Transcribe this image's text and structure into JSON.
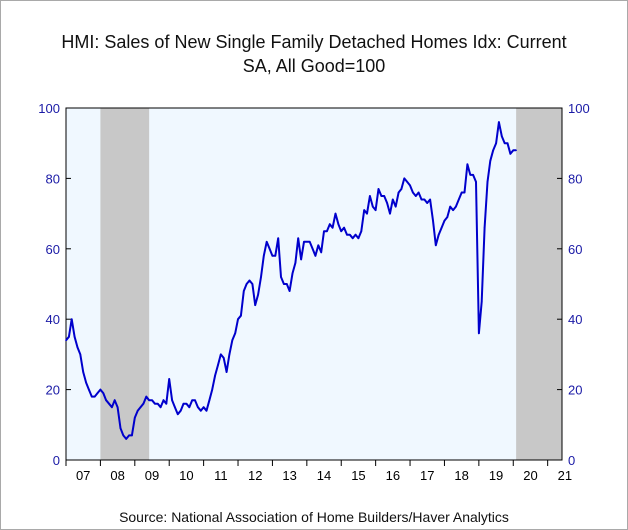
{
  "title_lines": [
    "HMI: Sales of New Single Family Detached Homes Idx: Current",
    "SA, All Good=100"
  ],
  "source": "Source:  National Association of Home Builders/Haver Analytics",
  "colors": {
    "line": "#0000cc",
    "plot_bg": "#f0f8ff",
    "recession": "#c8c8c8",
    "tick_label": "#1a1aa6"
  },
  "chart_data": {
    "type": "line",
    "title": "HMI: Sales of New Single Family Detached Homes Idx: Current SA, All Good=100",
    "xlabel": "",
    "ylabel": "",
    "ylim": [
      0,
      100
    ],
    "xlim": [
      "2007-01",
      "2021-06"
    ],
    "y_ticks": [
      "0",
      "20",
      "40",
      "60",
      "80",
      "100"
    ],
    "x_ticks": [
      "07",
      "08",
      "09",
      "10",
      "11",
      "12",
      "13",
      "14",
      "15",
      "16",
      "17",
      "18",
      "19",
      "20",
      "21"
    ],
    "recession_shading": [
      {
        "start": "2008-01",
        "end": "2009-06"
      },
      {
        "start": "2020-02",
        "end": "2021-06"
      }
    ],
    "grid": false,
    "legend": "none",
    "series": [
      {
        "values": [
          [
            "2007-01",
            34
          ],
          [
            "2007-02",
            35
          ],
          [
            "2007-03",
            40
          ],
          [
            "2007-04",
            35
          ],
          [
            "2007-05",
            32
          ],
          [
            "2007-06",
            30
          ],
          [
            "2007-07",
            25
          ],
          [
            "2007-08",
            22
          ],
          [
            "2007-09",
            20
          ],
          [
            "2007-10",
            18
          ],
          [
            "2007-11",
            18
          ],
          [
            "2007-12",
            19
          ],
          [
            "2008-01",
            20
          ],
          [
            "2008-02",
            19
          ],
          [
            "2008-03",
            17
          ],
          [
            "2008-04",
            16
          ],
          [
            "2008-05",
            15
          ],
          [
            "2008-06",
            17
          ],
          [
            "2008-07",
            15
          ],
          [
            "2008-08",
            9
          ],
          [
            "2008-09",
            7
          ],
          [
            "2008-10",
            6
          ],
          [
            "2008-11",
            7
          ],
          [
            "2008-12",
            7
          ],
          [
            "2009-01",
            12
          ],
          [
            "2009-02",
            14
          ],
          [
            "2009-03",
            15
          ],
          [
            "2009-04",
            16
          ],
          [
            "2009-05",
            18
          ],
          [
            "2009-06",
            17
          ],
          [
            "2009-07",
            17
          ],
          [
            "2009-08",
            16
          ],
          [
            "2009-09",
            16
          ],
          [
            "2009-10",
            15
          ],
          [
            "2009-11",
            17
          ],
          [
            "2009-12",
            16
          ],
          [
            "2010-01",
            23
          ],
          [
            "2010-02",
            17
          ],
          [
            "2010-03",
            15
          ],
          [
            "2010-04",
            13
          ],
          [
            "2010-05",
            14
          ],
          [
            "2010-06",
            16
          ],
          [
            "2010-07",
            16
          ],
          [
            "2010-08",
            15
          ],
          [
            "2010-09",
            17
          ],
          [
            "2010-10",
            17
          ],
          [
            "2010-11",
            15
          ],
          [
            "2010-12",
            14
          ],
          [
            "2011-01",
            15
          ],
          [
            "2011-02",
            14
          ],
          [
            "2011-03",
            17
          ],
          [
            "2011-04",
            20
          ],
          [
            "2011-05",
            24
          ],
          [
            "2011-06",
            27
          ],
          [
            "2011-07",
            30
          ],
          [
            "2011-08",
            29
          ],
          [
            "2011-09",
            25
          ],
          [
            "2011-10",
            30
          ],
          [
            "2011-11",
            34
          ],
          [
            "2011-12",
            36
          ],
          [
            "2012-01",
            40
          ],
          [
            "2012-02",
            41
          ],
          [
            "2012-03",
            48
          ],
          [
            "2012-04",
            50
          ],
          [
            "2012-05",
            51
          ],
          [
            "2012-06",
            50
          ],
          [
            "2012-07",
            44
          ],
          [
            "2012-08",
            47
          ],
          [
            "2012-09",
            52
          ],
          [
            "2012-10",
            58
          ],
          [
            "2012-11",
            62
          ],
          [
            "2012-12",
            60
          ],
          [
            "2013-01",
            58
          ],
          [
            "2013-02",
            58
          ],
          [
            "2013-03",
            63
          ],
          [
            "2013-04",
            52
          ],
          [
            "2013-05",
            50
          ],
          [
            "2013-06",
            50
          ],
          [
            "2013-07",
            48
          ],
          [
            "2013-08",
            53
          ],
          [
            "2013-09",
            56
          ],
          [
            "2013-10",
            63
          ],
          [
            "2013-11",
            57
          ],
          [
            "2013-12",
            62
          ],
          [
            "2014-01",
            62
          ],
          [
            "2014-02",
            62
          ],
          [
            "2014-03",
            60
          ],
          [
            "2014-04",
            58
          ],
          [
            "2014-05",
            61
          ],
          [
            "2014-06",
            59
          ],
          [
            "2014-07",
            65
          ],
          [
            "2014-08",
            65
          ],
          [
            "2014-09",
            67
          ],
          [
            "2014-10",
            66
          ],
          [
            "2014-11",
            70
          ],
          [
            "2014-12",
            67
          ],
          [
            "2015-01",
            65
          ],
          [
            "2015-02",
            66
          ],
          [
            "2015-03",
            64
          ],
          [
            "2015-04",
            64
          ],
          [
            "2015-05",
            63
          ],
          [
            "2015-06",
            64
          ],
          [
            "2015-07",
            63
          ],
          [
            "2015-08",
            65
          ],
          [
            "2015-09",
            71
          ],
          [
            "2015-10",
            70
          ],
          [
            "2015-11",
            75
          ],
          [
            "2015-12",
            72
          ],
          [
            "2016-01",
            71
          ],
          [
            "2016-02",
            77
          ],
          [
            "2016-03",
            75
          ],
          [
            "2016-04",
            75
          ],
          [
            "2016-05",
            73
          ],
          [
            "2016-06",
            70
          ],
          [
            "2016-07",
            74
          ],
          [
            "2016-08",
            72
          ],
          [
            "2016-09",
            76
          ],
          [
            "2016-10",
            77
          ],
          [
            "2016-11",
            80
          ],
          [
            "2016-12",
            79
          ],
          [
            "2017-01",
            78
          ],
          [
            "2017-02",
            76
          ],
          [
            "2017-03",
            75
          ],
          [
            "2017-04",
            76
          ],
          [
            "2017-05",
            74
          ],
          [
            "2017-06",
            74
          ],
          [
            "2017-07",
            73
          ],
          [
            "2017-08",
            74
          ],
          [
            "2017-09",
            68
          ],
          [
            "2017-10",
            61
          ],
          [
            "2017-11",
            64
          ],
          [
            "2017-12",
            66
          ],
          [
            "2018-01",
            68
          ],
          [
            "2018-02",
            69
          ],
          [
            "2018-03",
            72
          ],
          [
            "2018-04",
            71
          ],
          [
            "2018-05",
            72
          ],
          [
            "2018-06",
            74
          ],
          [
            "2018-07",
            76
          ],
          [
            "2018-08",
            76
          ],
          [
            "2018-09",
            84
          ],
          [
            "2018-10",
            81
          ],
          [
            "2018-11",
            81
          ],
          [
            "2018-12",
            79
          ],
          [
            "2019-01",
            36
          ],
          [
            "2019-02",
            45
          ],
          [
            "2019-03",
            66
          ],
          [
            "2019-04",
            79
          ],
          [
            "2019-05",
            85
          ],
          [
            "2019-06",
            88
          ],
          [
            "2019-07",
            90
          ],
          [
            "2019-08",
            96
          ],
          [
            "2019-09",
            92
          ],
          [
            "2019-10",
            90
          ],
          [
            "2019-11",
            90
          ],
          [
            "2019-12",
            87
          ],
          [
            "2020-01",
            88
          ],
          [
            "2020-02",
            88
          ]
        ]
      }
    ]
  }
}
